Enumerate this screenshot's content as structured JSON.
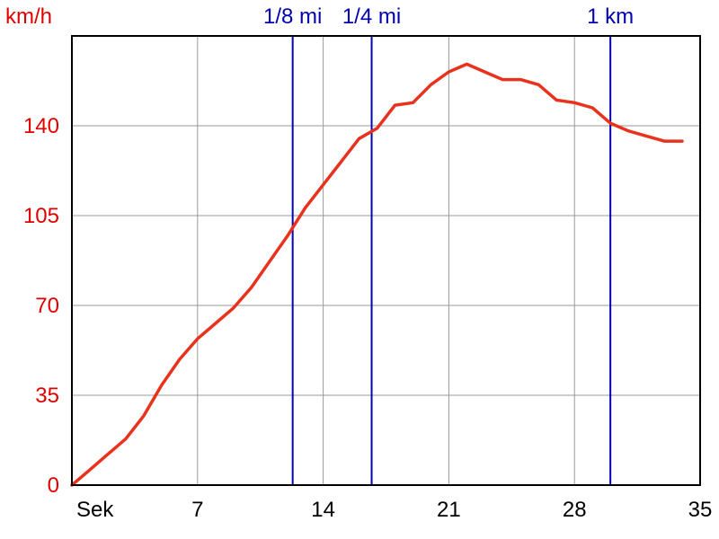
{
  "chart_data": {
    "type": "line",
    "title": "",
    "ylabel": "km/h",
    "xlabel": "Sek",
    "xlim": [
      0,
      35
    ],
    "ylim": [
      0,
      175
    ],
    "x_ticks": [
      7,
      14,
      21,
      28,
      35
    ],
    "y_ticks": [
      0,
      35,
      70,
      105,
      140
    ],
    "grid": true,
    "colors": {
      "line": "#e8321e",
      "axis_label": "#e00000",
      "marker": "#0000b4",
      "grid": "#999999",
      "frame": "#000000"
    },
    "series": [
      {
        "values": [
          [
            0,
            0
          ],
          [
            1,
            6
          ],
          [
            2,
            12
          ],
          [
            3,
            18
          ],
          [
            4,
            27
          ],
          [
            5,
            39
          ],
          [
            6,
            49
          ],
          [
            7,
            57
          ],
          [
            8,
            63
          ],
          [
            9,
            69
          ],
          [
            10,
            77
          ],
          [
            11,
            87
          ],
          [
            12,
            97
          ],
          [
            13,
            108
          ],
          [
            14,
            117
          ],
          [
            15,
            126
          ],
          [
            16,
            135
          ],
          [
            17,
            139
          ],
          [
            18,
            148
          ],
          [
            19,
            149
          ],
          [
            20,
            156
          ],
          [
            21,
            161
          ],
          [
            22,
            164
          ],
          [
            23,
            161
          ],
          [
            24,
            158
          ],
          [
            25,
            158
          ],
          [
            26,
            156
          ],
          [
            27,
            150
          ],
          [
            28,
            149
          ],
          [
            29,
            147
          ],
          [
            30,
            141
          ],
          [
            31,
            138
          ],
          [
            32,
            136
          ],
          [
            33,
            134
          ],
          [
            34,
            134
          ]
        ]
      }
    ],
    "markers": [
      {
        "x": 12.3,
        "label": "1/8 mi"
      },
      {
        "x": 16.7,
        "label": "1/4 mi"
      },
      {
        "x": 30.0,
        "label": "1 km"
      }
    ]
  }
}
